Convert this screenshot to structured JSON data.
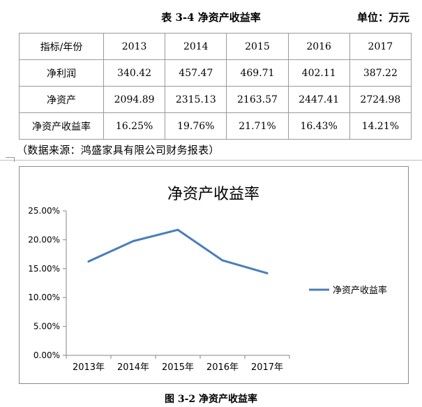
{
  "table": {
    "title": "表 3-4 净资产收益率",
    "unit": "单位：万元",
    "header": [
      "指标/年份",
      "2013",
      "2014",
      "2015",
      "2016",
      "2017"
    ],
    "rows": [
      [
        "净利润",
        "340.42",
        "457.47",
        "469.71",
        "402.11",
        "387.22"
      ],
      [
        "净资产",
        "2094.89",
        "2315.13",
        "2163.57",
        "2447.41",
        "2724.98"
      ],
      [
        "净资产收益率",
        "16.25%",
        "19.76%",
        "21.71%",
        "16.43%",
        "14.21%"
      ]
    ],
    "source": "（数据来源：鸿盛家具有限公司财务报表）"
  },
  "chart_data": {
    "type": "line",
    "title": "净资产收益率",
    "categories": [
      "2013年",
      "2014年",
      "2015年",
      "2016年",
      "2017年"
    ],
    "series": [
      {
        "name": "净资产收益率",
        "values": [
          16.25,
          19.76,
          21.71,
          16.43,
          14.21
        ],
        "color": "#4a7ebb"
      }
    ],
    "yticks": [
      "0.00%",
      "5.00%",
      "10.00%",
      "15.00%",
      "20.00%",
      "25.00%"
    ],
    "ylim": [
      0,
      25
    ],
    "xlabel": "",
    "ylabel": "",
    "legend": "right",
    "grid": false
  },
  "figure_caption": "图 3-2 净资产收益率"
}
